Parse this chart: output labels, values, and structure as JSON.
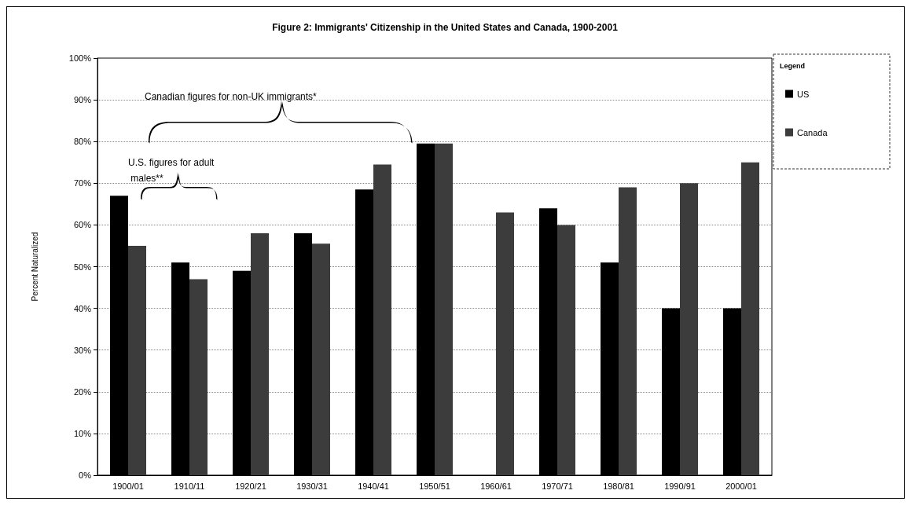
{
  "chart_data": {
    "type": "bar",
    "title": "Figure 2: Immigrants' Citizenship in the United States and Canada, 1900-2001",
    "ylabel": "Percent Naturalized",
    "categories": [
      "1900/01",
      "1910/11",
      "1920/21",
      "1930/31",
      "1940/41",
      "1950/51",
      "1960/61",
      "1970/71",
      "1980/81",
      "1990/91",
      "2000/01"
    ],
    "series": [
      {
        "name": "US",
        "color": "#000000",
        "values": [
          67,
          51,
          49,
          58,
          68.5,
          79.5,
          null,
          64,
          51,
          40,
          40
        ]
      },
      {
        "name": "Canada",
        "color": "#3c3c3c",
        "values": [
          55,
          47,
          58,
          55.5,
          74.5,
          79.5,
          63,
          60,
          69,
          70,
          75
        ]
      }
    ],
    "ylim": [
      0,
      100
    ],
    "yticks": [
      {
        "value": 0,
        "label": "0%"
      },
      {
        "value": 10,
        "label": "10%"
      },
      {
        "value": 20,
        "label": "20%"
      },
      {
        "value": 30,
        "label": "30%"
      },
      {
        "value": 40,
        "label": "40%"
      },
      {
        "value": 50,
        "label": "50%"
      },
      {
        "value": 60,
        "label": "60%"
      },
      {
        "value": 70,
        "label": "70%"
      },
      {
        "value": 80,
        "label": "80%"
      },
      {
        "value": 90,
        "label": "90%"
      },
      {
        "value": 100,
        "label": "100%"
      }
    ],
    "grid": "y",
    "legend": "top right",
    "legend_title": "Legend",
    "annotations": [
      "Canadian figures for non-UK immigrants*",
      "U.S. figures for adult males**"
    ]
  }
}
